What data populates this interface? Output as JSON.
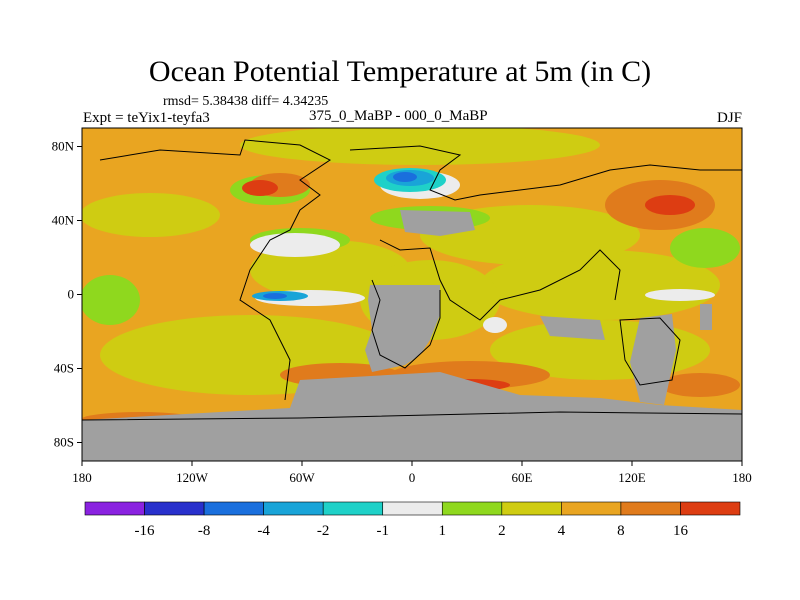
{
  "header": {
    "title": "Ocean Potential Temperature at 5m (in C)",
    "stats": "rmsd= 5.38438 diff= 4.34235",
    "experiment": "Expt = teYix1-teyfa3",
    "period": "375_0_MaBP - 000_0_MaBP",
    "season": "DJF"
  },
  "chart_data": {
    "type": "heatmap",
    "title": "Ocean Potential Temperature at 5m (in C)",
    "subtitle": "375_0_MaBP - 000_0_MaBP",
    "x_ticks": [
      "180",
      "120W",
      "60W",
      "0",
      "60E",
      "120E",
      "180"
    ],
    "y_ticks": [
      "80N",
      "40N",
      "0",
      "40S",
      "80S"
    ],
    "xlim": [
      -180,
      180
    ],
    "ylim": [
      -90,
      90
    ],
    "land_color": "#a0a0a0",
    "colorbar": {
      "boundaries": [
        "-16",
        "-8",
        "-4",
        "-2",
        "-1",
        "1",
        "2",
        "4",
        "8",
        "16"
      ],
      "colors": [
        "#8a22e0",
        "#2830cc",
        "#1a6fdd",
        "#19a4d8",
        "#1fd1c8",
        "#ececec",
        "#8fd81e",
        "#cfcc12",
        "#e9a521",
        "#e07b1c",
        "#dd3d12"
      ]
    }
  }
}
